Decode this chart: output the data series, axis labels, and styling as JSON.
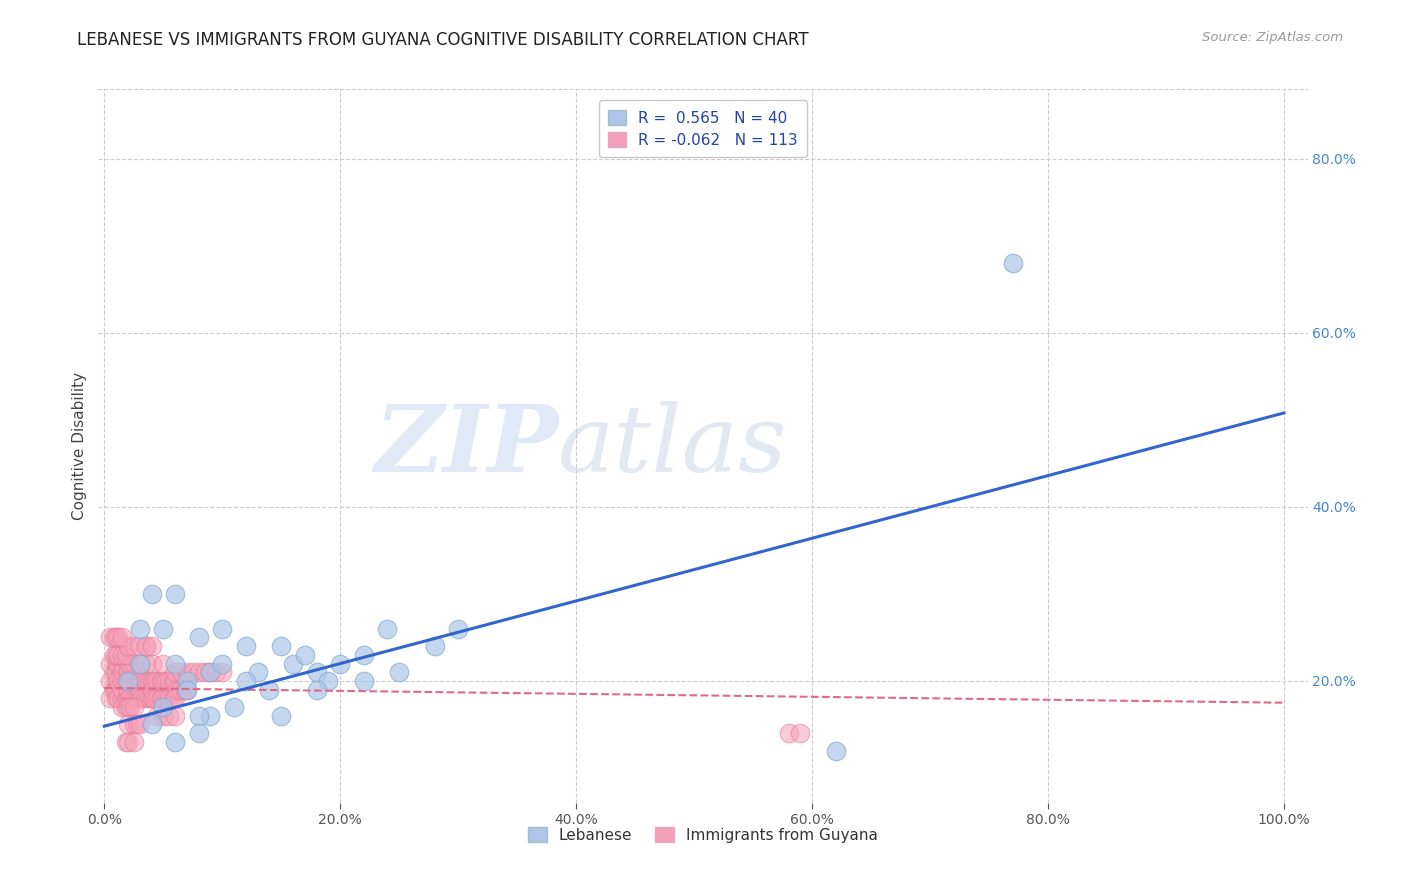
{
  "title": "LEBANESE VS IMMIGRANTS FROM GUYANA COGNITIVE DISABILITY CORRELATION CHART",
  "source": "Source: ZipAtlas.com",
  "ylabel": "Cognitive Disability",
  "xlabel": "",
  "xlim": [
    -0.005,
    1.02
  ],
  "ylim": [
    0.06,
    0.88
  ],
  "yticks_right": [
    0.2,
    0.4,
    0.6,
    0.8
  ],
  "ytick_labels_right": [
    "20.0%",
    "40.0%",
    "60.0%",
    "80.0%"
  ],
  "xticks": [
    0.0,
    0.2,
    0.4,
    0.6,
    0.8,
    1.0
  ],
  "xtick_labels": [
    "0.0%",
    "20.0%",
    "40.0%",
    "60.0%",
    "80.0%",
    "100.0%"
  ],
  "blue_R": 0.565,
  "blue_N": 40,
  "pink_R": -0.062,
  "pink_N": 113,
  "blue_color": "#adc6e8",
  "pink_color": "#f5a0b8",
  "blue_edge_color": "#85a8d0",
  "pink_edge_color": "#e87898",
  "blue_line_color": "#3366cc",
  "pink_line_color": "#e06888",
  "grid_color": "#cccccc",
  "bg_color": "#ffffff",
  "watermark_zip": "ZIP",
  "watermark_atlas": "atlas",
  "legend_label_blue": "Lebanese",
  "legend_label_pink": "Immigrants from Guyana",
  "blue_scatter_x": [
    0.02,
    0.03,
    0.04,
    0.05,
    0.06,
    0.06,
    0.07,
    0.08,
    0.09,
    0.1,
    0.11,
    0.12,
    0.13,
    0.14,
    0.15,
    0.16,
    0.17,
    0.18,
    0.19,
    0.2,
    0.22,
    0.24,
    0.05,
    0.07,
    0.09,
    0.1,
    0.12,
    0.15,
    0.18,
    0.22,
    0.25,
    0.28,
    0.3,
    0.03,
    0.04,
    0.06,
    0.08,
    0.77,
    0.62,
    0.08
  ],
  "blue_scatter_y": [
    0.2,
    0.26,
    0.3,
    0.26,
    0.22,
    0.3,
    0.2,
    0.25,
    0.21,
    0.26,
    0.17,
    0.24,
    0.21,
    0.19,
    0.24,
    0.22,
    0.23,
    0.21,
    0.2,
    0.22,
    0.23,
    0.26,
    0.17,
    0.19,
    0.16,
    0.22,
    0.2,
    0.16,
    0.19,
    0.2,
    0.21,
    0.24,
    0.26,
    0.22,
    0.15,
    0.13,
    0.16,
    0.68,
    0.12,
    0.14
  ],
  "pink_scatter_x": [
    0.005,
    0.005,
    0.005,
    0.008,
    0.008,
    0.01,
    0.01,
    0.01,
    0.01,
    0.01,
    0.012,
    0.012,
    0.012,
    0.015,
    0.015,
    0.015,
    0.015,
    0.015,
    0.018,
    0.018,
    0.02,
    0.02,
    0.02,
    0.02,
    0.02,
    0.022,
    0.022,
    0.022,
    0.025,
    0.025,
    0.025,
    0.028,
    0.028,
    0.03,
    0.03,
    0.03,
    0.03,
    0.03,
    0.032,
    0.032,
    0.035,
    0.035,
    0.035,
    0.038,
    0.038,
    0.04,
    0.04,
    0.04,
    0.04,
    0.042,
    0.042,
    0.045,
    0.045,
    0.048,
    0.048,
    0.05,
    0.05,
    0.05,
    0.052,
    0.052,
    0.055,
    0.055,
    0.058,
    0.058,
    0.06,
    0.06,
    0.062,
    0.065,
    0.068,
    0.07,
    0.015,
    0.018,
    0.02,
    0.022,
    0.025,
    0.008,
    0.01,
    0.012,
    0.015,
    0.018,
    0.02,
    0.025,
    0.028,
    0.03,
    0.035,
    0.02,
    0.025,
    0.03,
    0.035,
    0.04,
    0.045,
    0.05,
    0.055,
    0.06,
    0.06,
    0.065,
    0.07,
    0.075,
    0.08,
    0.085,
    0.09,
    0.095,
    0.1,
    0.58,
    0.59,
    0.005,
    0.008,
    0.01,
    0.012,
    0.015,
    0.018,
    0.02,
    0.025
  ],
  "pink_scatter_y": [
    0.18,
    0.2,
    0.22,
    0.19,
    0.21,
    0.18,
    0.2,
    0.22,
    0.19,
    0.21,
    0.18,
    0.2,
    0.22,
    0.18,
    0.2,
    0.22,
    0.19,
    0.21,
    0.18,
    0.2,
    0.18,
    0.2,
    0.22,
    0.19,
    0.21,
    0.18,
    0.2,
    0.22,
    0.18,
    0.2,
    0.22,
    0.18,
    0.2,
    0.18,
    0.2,
    0.22,
    0.19,
    0.21,
    0.18,
    0.2,
    0.18,
    0.2,
    0.22,
    0.18,
    0.2,
    0.18,
    0.2,
    0.22,
    0.19,
    0.18,
    0.2,
    0.18,
    0.2,
    0.18,
    0.2,
    0.18,
    0.2,
    0.22,
    0.18,
    0.2,
    0.18,
    0.2,
    0.18,
    0.2,
    0.18,
    0.2,
    0.19,
    0.19,
    0.19,
    0.19,
    0.17,
    0.17,
    0.17,
    0.17,
    0.17,
    0.23,
    0.23,
    0.23,
    0.23,
    0.23,
    0.15,
    0.15,
    0.15,
    0.15,
    0.24,
    0.24,
    0.24,
    0.24,
    0.24,
    0.24,
    0.16,
    0.16,
    0.16,
    0.16,
    0.21,
    0.21,
    0.21,
    0.21,
    0.21,
    0.21,
    0.21,
    0.21,
    0.21,
    0.14,
    0.14,
    0.25,
    0.25,
    0.25,
    0.25,
    0.25,
    0.13,
    0.13,
    0.13
  ],
  "blue_line_x": [
    0.0,
    1.0
  ],
  "blue_line_y": [
    0.148,
    0.508
  ],
  "pink_line_x": [
    0.0,
    1.0
  ],
  "pink_line_y": [
    0.192,
    0.175
  ]
}
